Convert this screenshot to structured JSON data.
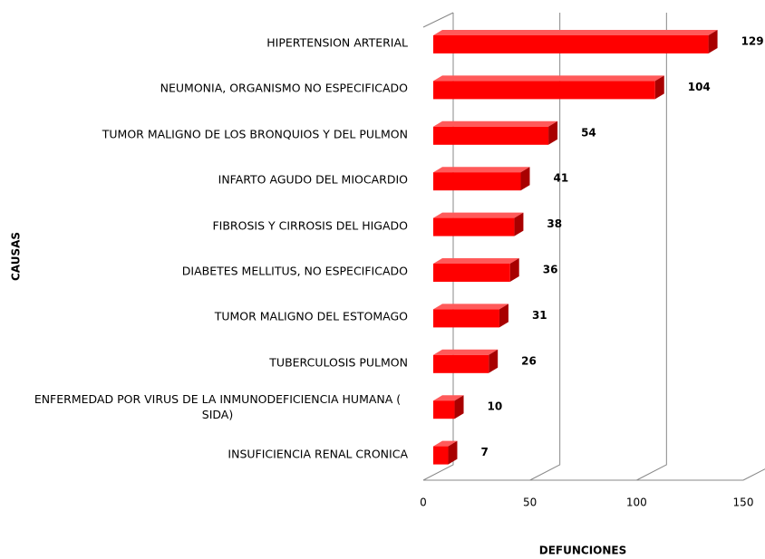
{
  "chart_data": {
    "type": "bar3d",
    "orientation": "horizontal",
    "xlabel": "DEFUNCIONES",
    "ylabel": "CAUSAS",
    "categories": [
      "HIPERTENSION ARTERIAL",
      "NEUMONIA, ORGANISMO NO ESPECIFICADO",
      "TUMOR MALIGNO DE LOS BRONQUIOS Y DEL PULMON",
      "INFARTO AGUDO DEL MIOCARDIO",
      "FIBROSIS Y CIRROSIS DEL HIGADO",
      "DIABETES MELLITUS, NO ESPECIFICADO",
      "TUMOR MALIGNO DEL ESTOMAGO",
      "TUBERCULOSIS PULMON",
      "ENFERMEDAD POR VIRUS DE LA INMUNODEFICIENCIA HUMANA ( SIDA)",
      "INSUFICIENCIA RENAL CRONICA"
    ],
    "values": [
      129,
      104,
      54,
      41,
      38,
      36,
      31,
      26,
      10,
      7
    ],
    "color": "#ff0000",
    "xlim": [
      0,
      150
    ],
    "xticks": [
      0,
      50,
      100,
      150
    ],
    "grid": true
  }
}
